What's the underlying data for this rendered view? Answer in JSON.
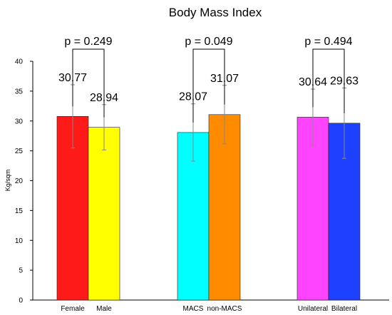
{
  "chart_data": {
    "type": "bar",
    "title": "Body Mass Index",
    "ylabel": "Kg/sqm",
    "xlabel": "",
    "ylim": [
      0,
      40
    ],
    "yticks": [
      0,
      5,
      10,
      15,
      20,
      25,
      30,
      35,
      40
    ],
    "grid": false,
    "groups": [
      {
        "p_value": "p = 0.249",
        "bars": [
          {
            "category": "Female",
            "value": 30.77,
            "value_label": "30.77",
            "error": 5.3,
            "color": "#ff1a1a"
          },
          {
            "category": "Male",
            "value": 28.94,
            "value_label": "28.94",
            "error": 3.8,
            "color": "#ffff00"
          }
        ]
      },
      {
        "p_value": "p = 0.049",
        "bars": [
          {
            "category": "MACS",
            "value": 28.07,
            "value_label": "28.07",
            "error": 4.8,
            "color": "#00ffff"
          },
          {
            "category": "non-MACS",
            "value": 31.07,
            "value_label": "31.07",
            "error": 4.9,
            "color": "#ff8c00"
          }
        ]
      },
      {
        "p_value": "p = 0.494",
        "bars": [
          {
            "category": "Unilateral",
            "value": 30.64,
            "value_label": "30.64",
            "error": 4.7,
            "color": "#ff44ff"
          },
          {
            "category": "Bilateral",
            "value": 29.63,
            "value_label": "29.63",
            "error": 5.9,
            "color": "#1e40ff"
          }
        ]
      }
    ]
  }
}
